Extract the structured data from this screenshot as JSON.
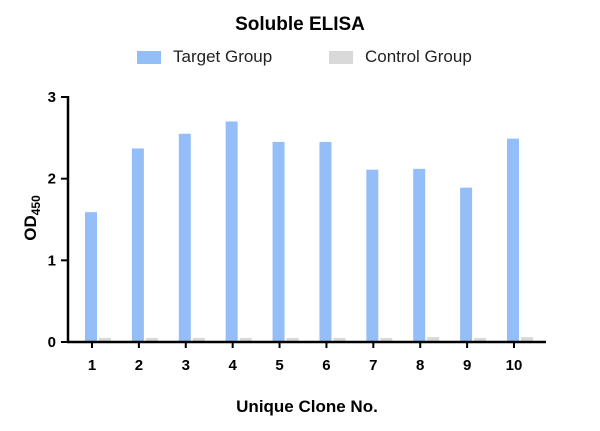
{
  "chart_data": {
    "type": "bar",
    "title": "Soluble ELISA",
    "xlabel": "Unique Clone No.",
    "ylabel": "OD",
    "ylabel_subscript": "450",
    "categories": [
      "1",
      "2",
      "3",
      "4",
      "5",
      "6",
      "7",
      "8",
      "9",
      "10"
    ],
    "series": [
      {
        "name": "Target Group",
        "color": "#94bef7",
        "values": [
          1.59,
          2.37,
          2.55,
          2.7,
          2.45,
          2.45,
          2.11,
          2.12,
          1.89,
          2.49
        ]
      },
      {
        "name": "Control Group",
        "color": "#d9d9d9",
        "values": [
          0.05,
          0.05,
          0.05,
          0.05,
          0.05,
          0.05,
          0.05,
          0.06,
          0.05,
          0.06
        ]
      }
    ],
    "ylim": [
      0,
      3
    ],
    "yticks": [
      "0",
      "1",
      "2",
      "3"
    ],
    "grid": false,
    "legend_position": "top"
  }
}
